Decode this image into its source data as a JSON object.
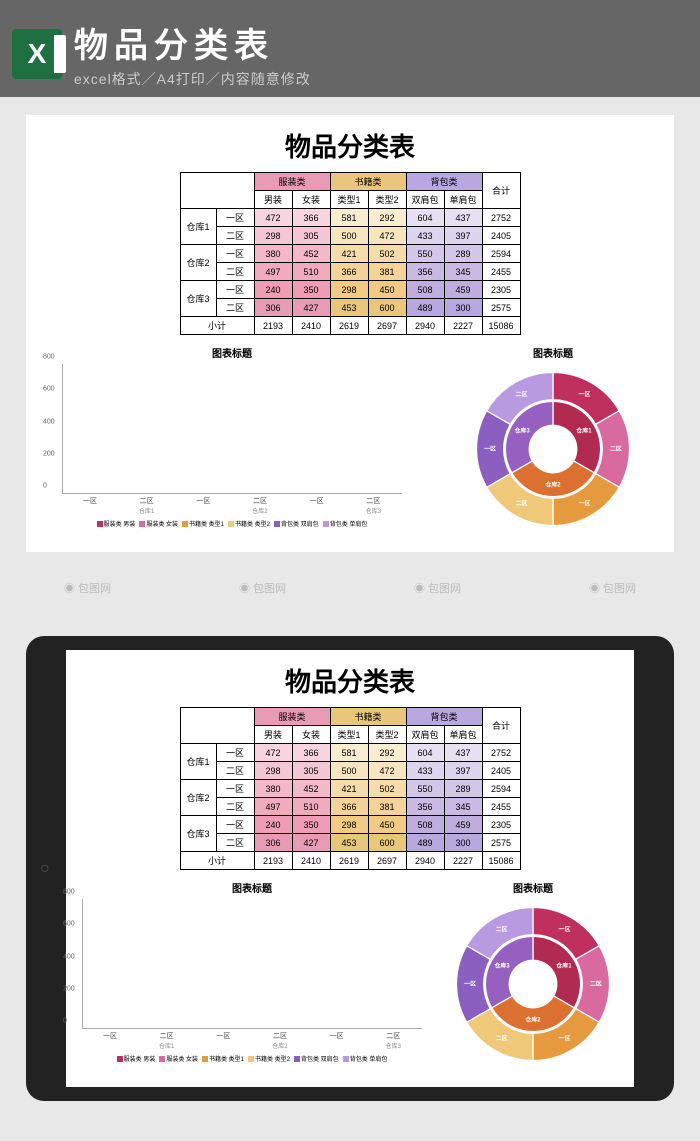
{
  "banner": {
    "title": "物品分类表",
    "subtitle": "excel格式／A4打印／内容随意修改"
  },
  "sheet_title": "物品分类表",
  "categories": {
    "clothing": {
      "label": "服装类",
      "sub": [
        "男装",
        "女装"
      ],
      "color": "#e89bb5"
    },
    "books": {
      "label": "书籍类",
      "sub": [
        "类型1",
        "类型2"
      ],
      "color": "#e8c77a"
    },
    "bags": {
      "label": "背包类",
      "sub": [
        "双肩包",
        "单肩包"
      ],
      "color": "#b8a8e0"
    },
    "total": {
      "label": "合计"
    }
  },
  "warehouses": [
    {
      "name": "仓库1",
      "zones": [
        "一区",
        "二区"
      ]
    },
    {
      "name": "仓库2",
      "zones": [
        "一区",
        "二区"
      ]
    },
    {
      "name": "仓库3",
      "zones": [
        "一区",
        "二区"
      ]
    }
  ],
  "rows": [
    {
      "wh": "仓库1",
      "zone": "一区",
      "vals": [
        472,
        366,
        581,
        292,
        604,
        437
      ],
      "total": 2752
    },
    {
      "wh": "仓库1",
      "zone": "二区",
      "vals": [
        298,
        305,
        500,
        472,
        433,
        397
      ],
      "total": 2405
    },
    {
      "wh": "仓库2",
      "zone": "一区",
      "vals": [
        380,
        452,
        421,
        502,
        550,
        289
      ],
      "total": 2594
    },
    {
      "wh": "仓库2",
      "zone": "二区",
      "vals": [
        497,
        510,
        366,
        381,
        356,
        345
      ],
      "total": 2455
    },
    {
      "wh": "仓库3",
      "zone": "一区",
      "vals": [
        240,
        350,
        298,
        450,
        508,
        459
      ],
      "total": 2305
    },
    {
      "wh": "仓库3",
      "zone": "二区",
      "vals": [
        306,
        427,
        453,
        600,
        489,
        300
      ],
      "total": 2575
    }
  ],
  "subtotal": {
    "label": "小计",
    "vals": [
      2193,
      2410,
      2619,
      2697,
      2940,
      2227
    ],
    "total": 15086
  },
  "bar_chart": {
    "title": "图表标题",
    "ymax": 800,
    "ytick_step": 200,
    "series_colors": [
      "#c0305e",
      "#d96aa0",
      "#e59a3e",
      "#efc878",
      "#8a5fbf",
      "#b89ae0"
    ],
    "series_labels": [
      "服装类 男装",
      "服装类 女装",
      "书籍类 类型1",
      "书籍类 类型2",
      "背包类 双肩包",
      "背包类 单肩包"
    ]
  },
  "donut_chart": {
    "title": "图表标题",
    "outer_colors": [
      "#c0305e",
      "#d96aa0",
      "#e59a3e",
      "#efc878",
      "#8a5fbf",
      "#b89ae0"
    ],
    "inner_colors": [
      "#b02a52",
      "#dc7030",
      "#9560c0"
    ],
    "outer_labels": [
      "一区",
      "二区",
      "一区",
      "二区",
      "一区",
      "二区"
    ],
    "inner_labels": [
      "仓库1",
      "仓库2",
      "仓库3"
    ]
  },
  "cell_shades": {
    "clothing": [
      "#f7d4e0",
      "#f5c7d6",
      "#f3b9cb",
      "#f1abbf",
      "#ef9db4",
      "#e89bb5"
    ],
    "books": [
      "#f9edd0",
      "#f7e5bd",
      "#f5dcaa",
      "#f3d397",
      "#f1ca84",
      "#e8c77a"
    ],
    "bags": [
      "#e7e0f3",
      "#ddd4ee",
      "#d3c7e9",
      "#c9bae3",
      "#bfadde",
      "#b8a8e0"
    ]
  },
  "watermark": "包图网"
}
